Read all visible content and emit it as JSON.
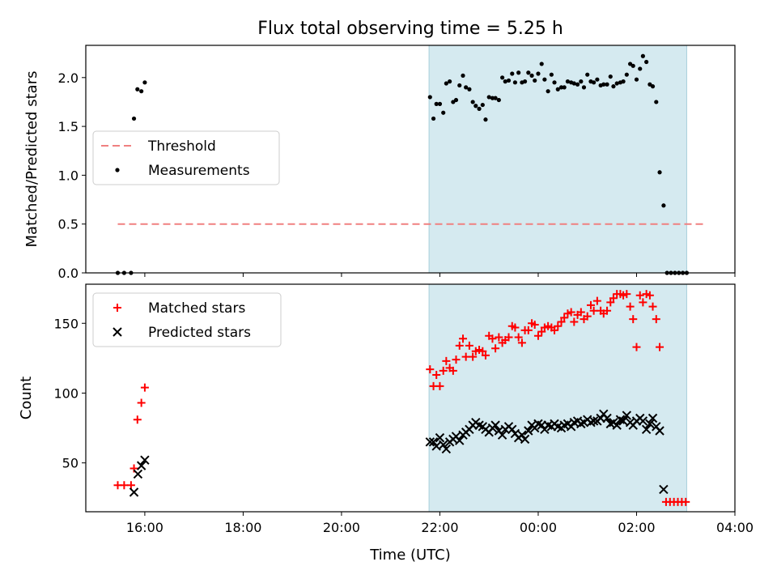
{
  "title": "Flux total observing time = 5.25 h",
  "xlabel": "Time (UTC)",
  "x_tick_labels": [
    "16:00",
    "18:00",
    "20:00",
    "22:00",
    "00:00",
    "02:00",
    "04:00"
  ],
  "colors": {
    "highlight": "#d5eaf0",
    "threshold": "#f08080",
    "measurements": "#000000",
    "matched": "#ff0000",
    "predicted": "#000000"
  },
  "chart_data": [
    {
      "type": "scatter",
      "ylabel": "Matched/Predicted stars",
      "x_unit": "hours since 00:00 UTC of first day",
      "xlim": [
        14.8,
        28.0
      ],
      "ylim": [
        0,
        2.33
      ],
      "y_tick_labels": [
        "0.0",
        "0.5",
        "1.0",
        "1.5",
        "2.0"
      ],
      "y_ticks": [
        0,
        0.5,
        1.0,
        1.5,
        2.0
      ],
      "highlight_span": [
        21.78,
        27.02
      ],
      "legend": {
        "location": "center-left",
        "entries": [
          "Threshold",
          "Measurements"
        ]
      },
      "threshold": {
        "name": "Threshold",
        "y": 0.5,
        "x_range": [
          15.45,
          27.4
        ]
      },
      "series": [
        {
          "name": "Measurements",
          "points": [
            [
              15.45,
              0
            ],
            [
              15.58,
              0
            ],
            [
              15.72,
              0
            ],
            [
              15.78,
              1.58
            ],
            [
              15.85,
              1.88
            ],
            [
              15.93,
              1.86
            ],
            [
              16.0,
              1.95
            ],
            [
              21.8,
              1.8
            ],
            [
              21.87,
              1.58
            ],
            [
              21.93,
              1.73
            ],
            [
              22.0,
              1.73
            ],
            [
              22.07,
              1.64
            ],
            [
              22.13,
              1.94
            ],
            [
              22.2,
              1.96
            ],
            [
              22.27,
              1.75
            ],
            [
              22.33,
              1.77
            ],
            [
              22.4,
              1.92
            ],
            [
              22.47,
              2.02
            ],
            [
              22.53,
              1.9
            ],
            [
              22.6,
              1.88
            ],
            [
              22.67,
              1.75
            ],
            [
              22.73,
              1.71
            ],
            [
              22.8,
              1.68
            ],
            [
              22.87,
              1.72
            ],
            [
              22.93,
              1.57
            ],
            [
              23.0,
              1.8
            ],
            [
              23.07,
              1.79
            ],
            [
              23.13,
              1.79
            ],
            [
              23.2,
              1.77
            ],
            [
              23.27,
              2.0
            ],
            [
              23.33,
              1.96
            ],
            [
              23.4,
              1.97
            ],
            [
              23.47,
              2.04
            ],
            [
              23.53,
              1.95
            ],
            [
              23.6,
              2.05
            ],
            [
              23.67,
              1.95
            ],
            [
              23.73,
              1.96
            ],
            [
              23.8,
              2.05
            ],
            [
              23.87,
              2.02
            ],
            [
              23.93,
              1.97
            ],
            [
              24.0,
              2.04
            ],
            [
              24.07,
              2.14
            ],
            [
              24.13,
              1.98
            ],
            [
              24.2,
              1.86
            ],
            [
              24.27,
              2.03
            ],
            [
              24.33,
              1.95
            ],
            [
              24.4,
              1.88
            ],
            [
              24.47,
              1.9
            ],
            [
              24.53,
              1.9
            ],
            [
              24.6,
              1.96
            ],
            [
              24.67,
              1.95
            ],
            [
              24.73,
              1.94
            ],
            [
              24.8,
              1.93
            ],
            [
              24.87,
              1.96
            ],
            [
              24.93,
              1.9
            ],
            [
              25.0,
              2.03
            ],
            [
              25.07,
              1.96
            ],
            [
              25.13,
              1.95
            ],
            [
              25.2,
              1.98
            ],
            [
              25.27,
              1.92
            ],
            [
              25.33,
              1.93
            ],
            [
              25.4,
              1.93
            ],
            [
              25.47,
              2.01
            ],
            [
              25.53,
              1.91
            ],
            [
              25.6,
              1.94
            ],
            [
              25.67,
              1.95
            ],
            [
              25.73,
              1.96
            ],
            [
              25.8,
              2.03
            ],
            [
              25.87,
              2.14
            ],
            [
              25.93,
              2.12
            ],
            [
              26.0,
              1.98
            ],
            [
              26.07,
              2.09
            ],
            [
              26.13,
              2.22
            ],
            [
              26.2,
              2.16
            ],
            [
              26.27,
              1.93
            ],
            [
              26.33,
              1.91
            ],
            [
              26.4,
              1.75
            ],
            [
              26.47,
              1.03
            ],
            [
              26.55,
              0.69
            ],
            [
              26.62,
              0
            ],
            [
              26.7,
              0
            ],
            [
              26.78,
              0
            ],
            [
              26.86,
              0
            ],
            [
              26.94,
              0
            ],
            [
              27.02,
              0
            ]
          ]
        }
      ]
    },
    {
      "type": "scatter",
      "ylabel": "Count",
      "xlabel": "Time (UTC)",
      "x_unit": "hours since 00:00 UTC of first day",
      "xlim": [
        14.8,
        28.0
      ],
      "ylim": [
        15,
        178
      ],
      "y_tick_labels": [
        "50",
        "100",
        "150"
      ],
      "y_ticks": [
        50,
        100,
        150
      ],
      "highlight_span": [
        21.78,
        27.02
      ],
      "legend": {
        "location": "top-left",
        "entries": [
          "Matched stars",
          "Predicted stars"
        ]
      },
      "series": [
        {
          "name": "Matched stars",
          "marker": "plus",
          "points": [
            [
              15.45,
              34
            ],
            [
              15.58,
              34
            ],
            [
              15.72,
              34
            ],
            [
              15.78,
              46
            ],
            [
              15.85,
              81
            ],
            [
              15.93,
              93
            ],
            [
              16.0,
              104
            ],
            [
              21.8,
              117
            ],
            [
              21.87,
              105
            ],
            [
              21.93,
              113
            ],
            [
              22.0,
              105
            ],
            [
              22.07,
              116
            ],
            [
              22.13,
              123
            ],
            [
              22.2,
              118
            ],
            [
              22.27,
              116
            ],
            [
              22.33,
              124
            ],
            [
              22.4,
              134
            ],
            [
              22.47,
              139
            ],
            [
              22.53,
              126
            ],
            [
              22.6,
              134
            ],
            [
              22.67,
              126
            ],
            [
              22.73,
              130
            ],
            [
              22.8,
              131
            ],
            [
              22.87,
              130
            ],
            [
              22.93,
              127
            ],
            [
              23.0,
              141
            ],
            [
              23.07,
              139
            ],
            [
              23.13,
              132
            ],
            [
              23.2,
              140
            ],
            [
              23.27,
              136
            ],
            [
              23.33,
              138
            ],
            [
              23.4,
              140
            ],
            [
              23.47,
              148
            ],
            [
              23.53,
              147
            ],
            [
              23.6,
              140
            ],
            [
              23.67,
              136
            ],
            [
              23.73,
              145
            ],
            [
              23.8,
              145
            ],
            [
              23.87,
              150
            ],
            [
              23.93,
              149
            ],
            [
              24.0,
              141
            ],
            [
              24.07,
              144
            ],
            [
              24.13,
              147
            ],
            [
              24.2,
              148
            ],
            [
              24.27,
              147
            ],
            [
              24.33,
              145
            ],
            [
              24.4,
              148
            ],
            [
              24.47,
              151
            ],
            [
              24.53,
              154
            ],
            [
              24.6,
              157
            ],
            [
              24.67,
              158
            ],
            [
              24.73,
              151
            ],
            [
              24.8,
              156
            ],
            [
              24.87,
              158
            ],
            [
              24.93,
              153
            ],
            [
              25.0,
              155
            ],
            [
              25.07,
              163
            ],
            [
              25.13,
              159
            ],
            [
              25.2,
              166
            ],
            [
              25.27,
              159
            ],
            [
              25.33,
              157
            ],
            [
              25.4,
              159
            ],
            [
              25.47,
              165
            ],
            [
              25.53,
              168
            ],
            [
              25.6,
              171
            ],
            [
              25.67,
              171
            ],
            [
              25.73,
              170
            ],
            [
              25.8,
              171
            ],
            [
              25.87,
              162
            ],
            [
              25.93,
              153
            ],
            [
              26.0,
              133
            ],
            [
              26.07,
              170
            ],
            [
              26.13,
              165
            ],
            [
              26.2,
              171
            ],
            [
              26.27,
              170
            ],
            [
              26.33,
              162
            ],
            [
              26.4,
              153
            ],
            [
              26.47,
              133
            ],
            [
              26.6,
              22
            ],
            [
              26.68,
              22
            ],
            [
              26.76,
              22
            ],
            [
              26.84,
              22
            ],
            [
              26.92,
              22
            ],
            [
              27.0,
              22
            ]
          ]
        },
        {
          "name": "Predicted stars",
          "marker": "x",
          "points": [
            [
              15.78,
              29
            ],
            [
              15.86,
              42
            ],
            [
              15.93,
              48
            ],
            [
              16.0,
              52
            ],
            [
              21.8,
              65
            ],
            [
              21.87,
              65
            ],
            [
              21.93,
              62
            ],
            [
              22.0,
              68
            ],
            [
              22.07,
              63
            ],
            [
              22.13,
              60
            ],
            [
              22.2,
              65
            ],
            [
              22.27,
              67
            ],
            [
              22.33,
              69
            ],
            [
              22.4,
              66
            ],
            [
              22.47,
              70
            ],
            [
              22.53,
              72
            ],
            [
              22.6,
              74
            ],
            [
              22.67,
              77
            ],
            [
              22.73,
              79
            ],
            [
              22.8,
              77
            ],
            [
              22.87,
              76
            ],
            [
              22.93,
              74
            ],
            [
              23.0,
              72
            ],
            [
              23.07,
              75
            ],
            [
              23.13,
              77
            ],
            [
              23.2,
              73
            ],
            [
              23.27,
              70
            ],
            [
              23.33,
              74
            ],
            [
              23.4,
              76
            ],
            [
              23.47,
              74
            ],
            [
              23.53,
              71
            ],
            [
              23.6,
              68
            ],
            [
              23.67,
              70
            ],
            [
              23.73,
              67
            ],
            [
              23.8,
              73
            ],
            [
              23.87,
              77
            ],
            [
              23.93,
              75
            ],
            [
              24.0,
              78
            ],
            [
              24.07,
              77
            ],
            [
              24.13,
              74
            ],
            [
              24.2,
              77
            ],
            [
              24.27,
              76
            ],
            [
              24.33,
              78
            ],
            [
              24.4,
              76
            ],
            [
              24.47,
              75
            ],
            [
              24.53,
              77
            ],
            [
              24.6,
              78
            ],
            [
              24.67,
              76
            ],
            [
              24.73,
              79
            ],
            [
              24.8,
              80
            ],
            [
              24.87,
              78
            ],
            [
              24.93,
              79
            ],
            [
              25.0,
              81
            ],
            [
              25.07,
              79
            ],
            [
              25.13,
              80
            ],
            [
              25.2,
              80
            ],
            [
              25.27,
              82
            ],
            [
              25.33,
              85
            ],
            [
              25.4,
              82
            ],
            [
              25.47,
              78
            ],
            [
              25.53,
              79
            ],
            [
              25.6,
              77
            ],
            [
              25.67,
              81
            ],
            [
              25.73,
              80
            ],
            [
              25.8,
              84
            ],
            [
              25.87,
              79
            ],
            [
              25.93,
              77
            ],
            [
              26.0,
              80
            ],
            [
              26.07,
              82
            ],
            [
              26.13,
              80
            ],
            [
              26.2,
              74
            ],
            [
              26.27,
              78
            ],
            [
              26.33,
              82
            ],
            [
              26.4,
              76
            ],
            [
              26.47,
              73
            ],
            [
              26.55,
              31
            ]
          ]
        }
      ]
    }
  ]
}
